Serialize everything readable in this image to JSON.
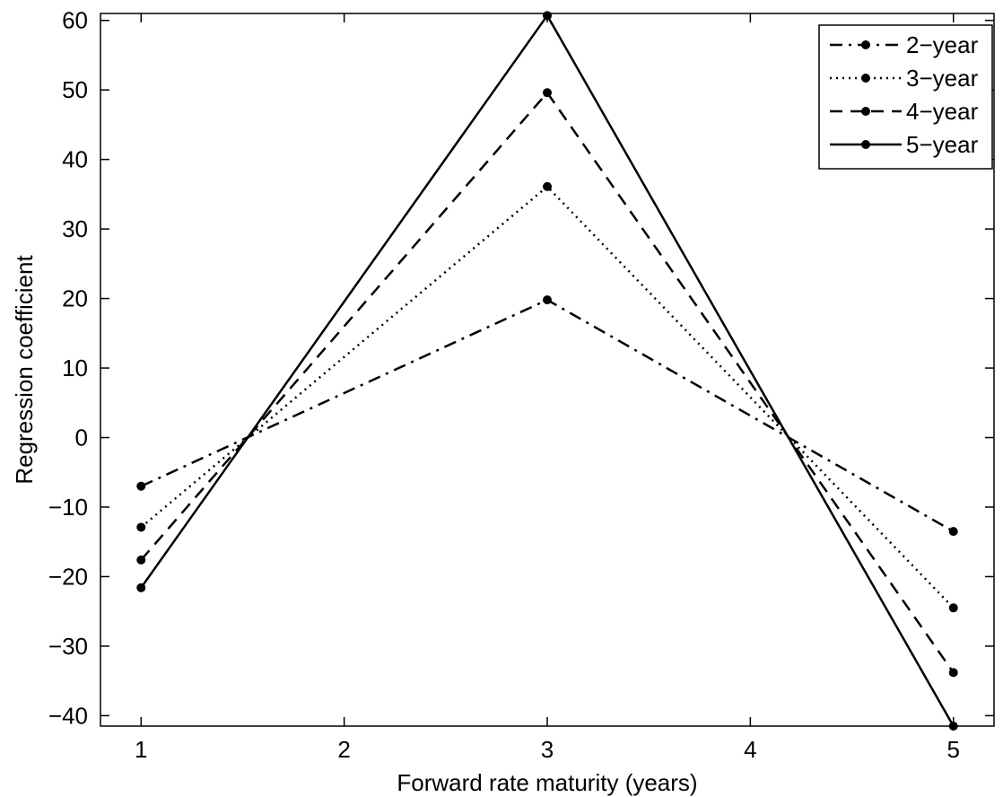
{
  "chart_data": {
    "type": "line",
    "x": [
      1,
      3,
      5
    ],
    "xlabel": "Forward rate maturity (years)",
    "ylabel": "Regression coefficient",
    "xlim": [
      0.8,
      5.2
    ],
    "ylim": [
      -41.5,
      61.0
    ],
    "xticks": [
      1,
      2,
      3,
      4,
      5
    ],
    "xtick_labels": [
      "1",
      "2",
      "3",
      "4",
      "5"
    ],
    "yticks": [
      60,
      50,
      40,
      30,
      20,
      10,
      0,
      -10,
      -20,
      -30,
      -40
    ],
    "ytick_labels": [
      "60",
      "50",
      "40",
      "30",
      "20",
      "10",
      "0",
      "−10",
      "−20",
      "−30",
      "−40"
    ],
    "grid": false,
    "legend_position": "top-right",
    "series": [
      {
        "name": "2−year",
        "style": "dash-dot",
        "values": [
          -7.0,
          19.8,
          -13.5
        ]
      },
      {
        "name": "3−year",
        "style": "dotted",
        "values": [
          -12.9,
          36.1,
          -24.5
        ]
      },
      {
        "name": "4−year",
        "style": "dashed",
        "values": [
          -17.6,
          49.6,
          -33.8
        ]
      },
      {
        "name": "5−year",
        "style": "solid",
        "values": [
          -21.6,
          60.7,
          -41.5
        ]
      }
    ],
    "colors": {
      "line": "#000000",
      "background": "#ffffff"
    }
  }
}
